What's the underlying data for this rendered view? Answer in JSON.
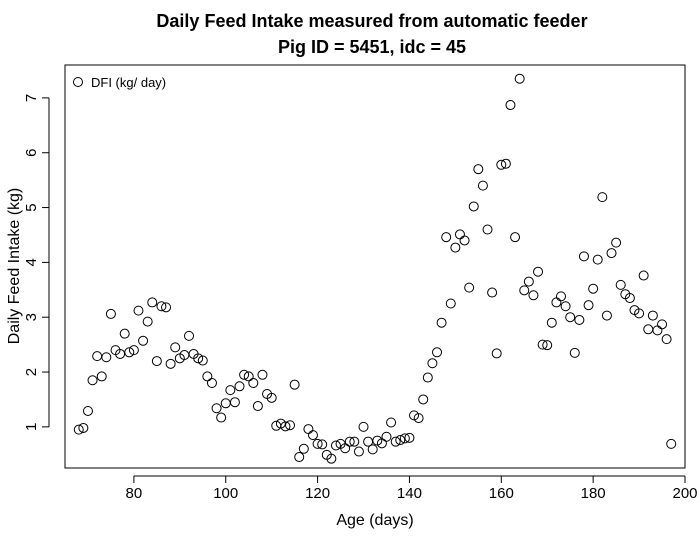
{
  "chart_data": {
    "type": "scatter",
    "title": "Daily Feed Intake measured from automatic feeder",
    "subtitle": "Pig ID = 5451, idc = 45",
    "xlabel": "Age (days)",
    "ylabel": "Daily Feed Intake (kg)",
    "xlim": [
      65,
      200
    ],
    "ylim": [
      0.25,
      7.6
    ],
    "xticks": [
      80,
      100,
      120,
      140,
      160,
      180,
      200
    ],
    "yticks": [
      1,
      2,
      3,
      4,
      5,
      6,
      7
    ],
    "grid": false,
    "legend": {
      "position": "top-left",
      "entries": [
        "DFI (kg/ day)"
      ]
    },
    "series": [
      {
        "name": "DFI (kg/ day)",
        "marker": "open-circle",
        "color": "#000000",
        "points": [
          [
            68,
            0.95
          ],
          [
            69,
            0.98
          ],
          [
            70,
            1.29
          ],
          [
            71,
            1.85
          ],
          [
            72,
            2.29
          ],
          [
            73,
            1.92
          ],
          [
            74,
            2.27
          ],
          [
            75,
            3.06
          ],
          [
            76,
            2.4
          ],
          [
            77,
            2.33
          ],
          [
            78,
            2.7
          ],
          [
            79,
            2.36
          ],
          [
            80,
            2.4
          ],
          [
            81,
            3.12
          ],
          [
            82,
            2.57
          ],
          [
            83,
            2.92
          ],
          [
            84,
            3.27
          ],
          [
            85,
            2.2
          ],
          [
            86,
            3.2
          ],
          [
            87,
            3.18
          ],
          [
            88,
            2.15
          ],
          [
            89,
            2.45
          ],
          [
            90,
            2.25
          ],
          [
            91,
            2.31
          ],
          [
            92,
            2.66
          ],
          [
            93,
            2.33
          ],
          [
            94,
            2.25
          ],
          [
            95,
            2.21
          ],
          [
            96,
            1.92
          ],
          [
            97,
            1.8
          ],
          [
            98,
            1.34
          ],
          [
            99,
            1.17
          ],
          [
            100,
            1.43
          ],
          [
            101,
            1.67
          ],
          [
            102,
            1.45
          ],
          [
            103,
            1.74
          ],
          [
            104,
            1.95
          ],
          [
            105,
            1.92
          ],
          [
            106,
            1.8
          ],
          [
            107,
            1.38
          ],
          [
            108,
            1.95
          ],
          [
            109,
            1.6
          ],
          [
            110,
            1.53
          ],
          [
            111,
            1.02
          ],
          [
            112,
            1.06
          ],
          [
            113,
            1.01
          ],
          [
            114,
            1.03
          ],
          [
            115,
            1.77
          ],
          [
            116,
            0.45
          ],
          [
            117,
            0.6
          ],
          [
            118,
            0.96
          ],
          [
            119,
            0.85
          ],
          [
            120,
            0.69
          ],
          [
            121,
            0.68
          ],
          [
            122,
            0.49
          ],
          [
            123,
            0.42
          ],
          [
            124,
            0.66
          ],
          [
            125,
            0.69
          ],
          [
            126,
            0.61
          ],
          [
            127,
            0.73
          ],
          [
            128,
            0.73
          ],
          [
            129,
            0.55
          ],
          [
            130,
            1.0
          ],
          [
            131,
            0.73
          ],
          [
            132,
            0.59
          ],
          [
            133,
            0.75
          ],
          [
            134,
            0.7
          ],
          [
            135,
            0.82
          ],
          [
            136,
            1.08
          ],
          [
            137,
            0.73
          ],
          [
            138,
            0.76
          ],
          [
            139,
            0.79
          ],
          [
            140,
            0.8
          ],
          [
            141,
            1.21
          ],
          [
            142,
            1.16
          ],
          [
            143,
            1.5
          ],
          [
            144,
            1.9
          ],
          [
            145,
            2.16
          ],
          [
            146,
            2.36
          ],
          [
            147,
            2.9
          ],
          [
            148,
            4.46
          ],
          [
            149,
            3.25
          ],
          [
            150,
            4.27
          ],
          [
            151,
            4.51
          ],
          [
            152,
            4.4
          ],
          [
            153,
            3.54
          ],
          [
            154,
            5.02
          ],
          [
            155,
            5.7
          ],
          [
            156,
            5.4
          ],
          [
            157,
            4.6
          ],
          [
            158,
            3.45
          ],
          [
            159,
            2.34
          ],
          [
            160,
            5.78
          ],
          [
            161,
            5.8
          ],
          [
            162,
            6.87
          ],
          [
            163,
            4.46
          ],
          [
            164,
            7.35
          ],
          [
            165,
            3.49
          ],
          [
            166,
            3.65
          ],
          [
            167,
            3.4
          ],
          [
            168,
            3.83
          ],
          [
            169,
            2.5
          ],
          [
            170,
            2.49
          ],
          [
            171,
            2.9
          ],
          [
            172,
            3.27
          ],
          [
            173,
            3.38
          ],
          [
            174,
            3.2
          ],
          [
            175,
            3.0
          ],
          [
            176,
            2.35
          ],
          [
            177,
            2.95
          ],
          [
            178,
            4.11
          ],
          [
            179,
            3.22
          ],
          [
            180,
            3.52
          ],
          [
            181,
            4.05
          ],
          [
            182,
            5.19
          ],
          [
            183,
            3.03
          ],
          [
            184,
            4.17
          ],
          [
            185,
            4.36
          ],
          [
            186,
            3.59
          ],
          [
            187,
            3.42
          ],
          [
            188,
            3.35
          ],
          [
            189,
            3.13
          ],
          [
            190,
            3.07
          ],
          [
            191,
            3.76
          ],
          [
            192,
            2.78
          ],
          [
            193,
            3.03
          ],
          [
            194,
            2.76
          ],
          [
            195,
            2.87
          ],
          [
            196,
            2.6
          ],
          [
            197,
            0.69
          ]
        ]
      }
    ]
  }
}
